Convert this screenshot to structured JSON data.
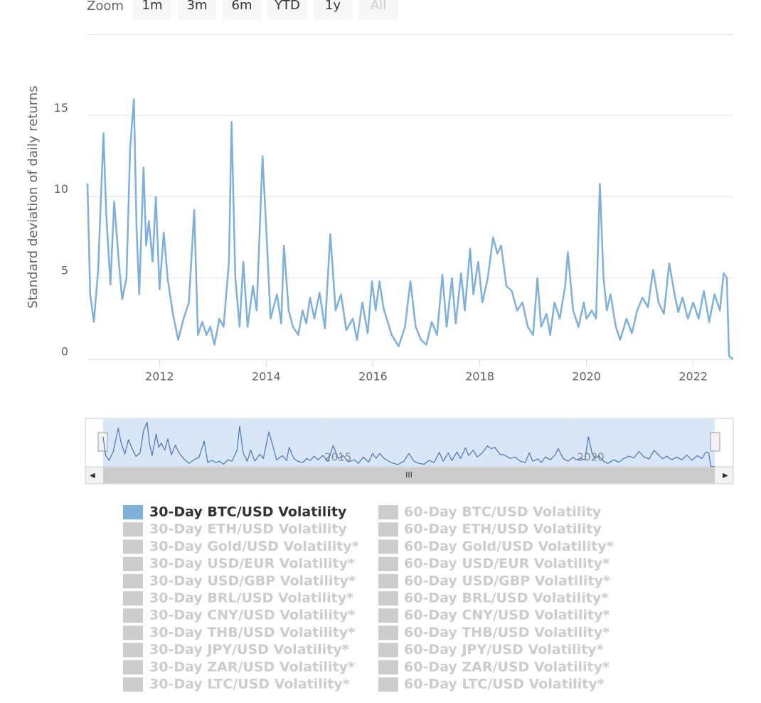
{
  "chart_data": {
    "type": "line",
    "zoom": {
      "label": "Zoom",
      "buttons": [
        "1m",
        "3m",
        "6m",
        "YTD",
        "1y",
        "All"
      ]
    },
    "y_label": "Standard deviation of daily returns",
    "ylim": [
      0,
      20
    ],
    "yticks": [
      0,
      5,
      10,
      15
    ],
    "xlim": [
      2010.65,
      2022.75
    ],
    "xticks": [
      2012,
      2014,
      2016,
      2018,
      2020,
      2022
    ],
    "navigator": {
      "xticks": [
        2015,
        2020
      ]
    },
    "x": [
      2010.65,
      2010.7,
      2010.77,
      2010.85,
      2010.95,
      2011.0,
      2011.08,
      2011.15,
      2011.25,
      2011.3,
      2011.38,
      2011.45,
      2011.52,
      2011.57,
      2011.62,
      2011.7,
      2011.75,
      2011.8,
      2011.87,
      2011.93,
      2012.0,
      2012.08,
      2012.15,
      2012.25,
      2012.35,
      2012.45,
      2012.55,
      2012.65,
      2012.72,
      2012.8,
      2012.88,
      2012.95,
      2013.03,
      2013.12,
      2013.2,
      2013.3,
      2013.35,
      2013.42,
      2013.5,
      2013.57,
      2013.65,
      2013.75,
      2013.82,
      2013.93,
      2014.0,
      2014.08,
      2014.2,
      2014.28,
      2014.33,
      2014.42,
      2014.5,
      2014.6,
      2014.68,
      2014.75,
      2014.82,
      2014.9,
      2015.0,
      2015.1,
      2015.2,
      2015.3,
      2015.4,
      2015.5,
      2015.62,
      2015.7,
      2015.8,
      2015.9,
      2015.98,
      2016.05,
      2016.12,
      2016.2,
      2016.35,
      2016.48,
      2016.6,
      2016.7,
      2016.8,
      2016.9,
      2017.0,
      2017.1,
      2017.2,
      2017.3,
      2017.38,
      2017.48,
      2017.55,
      2017.65,
      2017.72,
      2017.82,
      2017.88,
      2017.97,
      2018.05,
      2018.15,
      2018.25,
      2018.33,
      2018.4,
      2018.5,
      2018.6,
      2018.7,
      2018.8,
      2018.9,
      2019.0,
      2019.08,
      2019.15,
      2019.25,
      2019.32,
      2019.4,
      2019.5,
      2019.6,
      2019.65,
      2019.75,
      2019.85,
      2019.95,
      2020.0,
      2020.1,
      2020.18,
      2020.25,
      2020.32,
      2020.38,
      2020.45,
      2020.55,
      2020.63,
      2020.75,
      2020.85,
      2020.95,
      2021.05,
      2021.15,
      2021.25,
      2021.35,
      2021.45,
      2021.55,
      2021.65,
      2021.72,
      2021.8,
      2021.9,
      2022.0,
      2022.1,
      2022.2,
      2022.3,
      2022.4,
      2022.5,
      2022.57,
      2022.63,
      2022.67,
      2022.75
    ],
    "series": [
      {
        "name": "30-Day BTC/USD Volatility",
        "color": "#7eb0dc",
        "visible": true,
        "values": [
          10.8,
          4,
          2.3,
          5.5,
          13.9,
          9,
          4.6,
          9.7,
          5.5,
          3.7,
          5,
          13,
          16,
          8,
          4,
          11.8,
          7,
          8.5,
          6,
          10,
          4.3,
          7.8,
          5,
          2.8,
          1.2,
          2.5,
          3.5,
          9.2,
          1.5,
          2.3,
          1.5,
          2,
          0.9,
          2.5,
          2,
          6,
          14.6,
          5,
          2,
          6,
          2,
          4.5,
          3,
          12.5,
          8,
          2.5,
          4,
          2.2,
          7,
          3,
          2,
          1.5,
          3,
          2.2,
          3.8,
          2.5,
          4.1,
          1.9,
          7.7,
          3,
          4,
          1.8,
          2.5,
          1.2,
          3.5,
          1.6,
          4.8,
          3,
          4.8,
          3.1,
          1.5,
          0.8,
          2,
          4.8,
          2,
          1.2,
          0.9,
          2.3,
          1.5,
          5.2,
          2,
          5,
          2.2,
          5.3,
          3,
          6.8,
          4,
          6,
          3.5,
          5,
          7.5,
          6.5,
          7,
          4.5,
          4.2,
          3,
          3.5,
          2,
          1.5,
          5,
          2,
          2.8,
          1.5,
          3.5,
          2.5,
          4.5,
          6.6,
          3,
          2,
          3.5,
          2.5,
          3,
          2.5,
          10.8,
          5,
          3,
          4,
          2,
          1.2,
          2.5,
          1.6,
          3,
          3.8,
          3.2,
          5.5,
          3.5,
          2.8,
          5.9,
          4,
          2.9,
          3.8,
          2.5,
          3.5,
          2.5,
          4.2,
          2.3,
          4,
          3,
          5.3,
          5,
          0.2,
          0
        ]
      },
      {
        "name": "60-Day BTC/USD Volatility",
        "visible": false
      },
      {
        "name": "30-Day ETH/USD Volatility",
        "visible": false
      },
      {
        "name": "60-Day ETH/USD Volatility",
        "visible": false
      },
      {
        "name": "30-Day Gold/USD Volatility*",
        "visible": false
      },
      {
        "name": "60-Day Gold/USD Volatility*",
        "visible": false
      },
      {
        "name": "30-Day USD/EUR Volatility*",
        "visible": false
      },
      {
        "name": "60-Day USD/EUR Volatility*",
        "visible": false
      },
      {
        "name": "30-Day USD/GBP Volatility*",
        "visible": false
      },
      {
        "name": "60-Day USD/GBP Volatility*",
        "visible": false
      },
      {
        "name": "30-Day BRL/USD Volatility*",
        "visible": false
      },
      {
        "name": "60-Day BRL/USD Volatility*",
        "visible": false
      },
      {
        "name": "30-Day CNY/USD Volatility*",
        "visible": false
      },
      {
        "name": "60-Day CNY/USD Volatility*",
        "visible": false
      },
      {
        "name": "30-Day THB/USD Volatility*",
        "visible": false
      },
      {
        "name": "60-Day THB/USD Volatility*",
        "visible": false
      },
      {
        "name": "30-Day JPY/USD Volatility*",
        "visible": false
      },
      {
        "name": "60-Day JPY/USD Volatility*",
        "visible": false
      },
      {
        "name": "30-Day ZAR/USD Volatility*",
        "visible": false
      },
      {
        "name": "60-Day ZAR/USD Volatility*",
        "visible": false
      },
      {
        "name": "30-Day LTC/USD Volatility*",
        "visible": false
      },
      {
        "name": "60-Day LTC/USD Volatility*",
        "visible": false
      }
    ]
  }
}
